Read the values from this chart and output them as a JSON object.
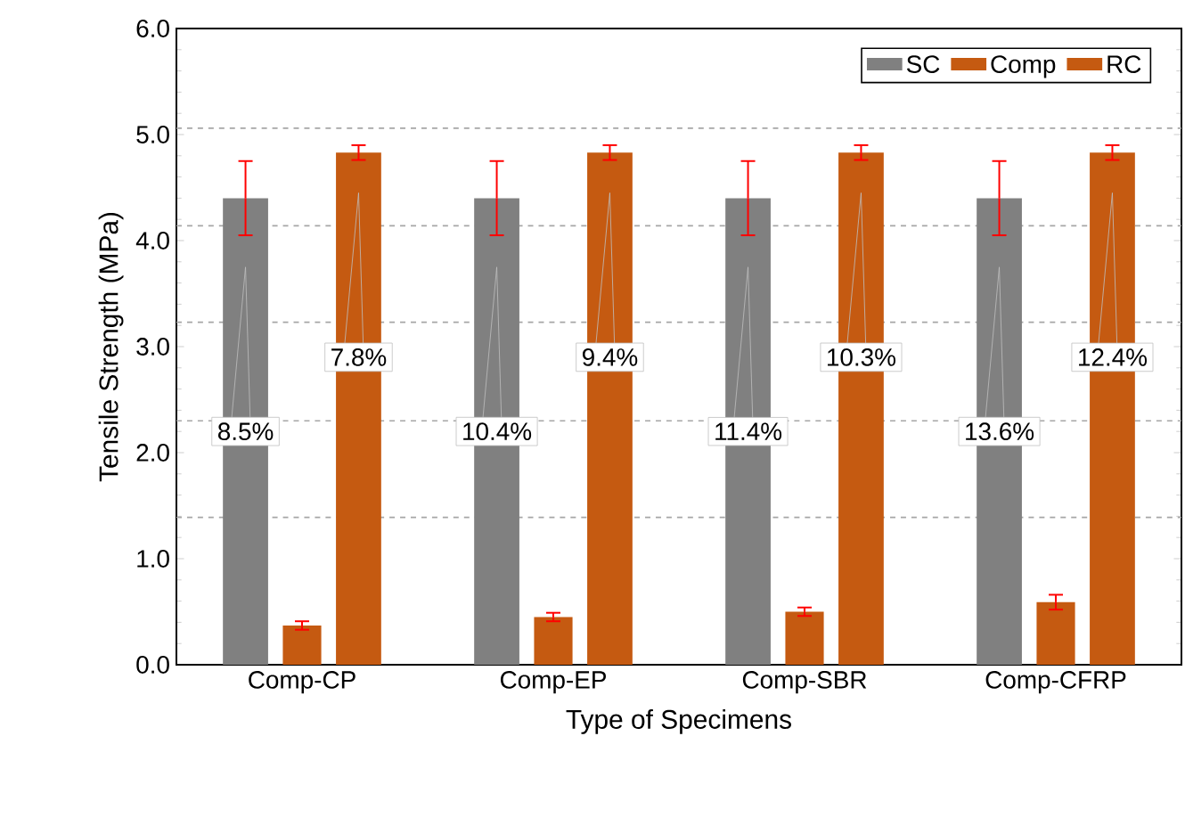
{
  "chart_data": {
    "type": "bar",
    "xlabel": "Type of Specimens",
    "ylabel": "Tensile Strength (MPa)",
    "categories": [
      "Comp-CP",
      "Comp-EP",
      "Comp-SBR",
      "Comp-CFRP"
    ],
    "series": [
      {
        "name": "SC",
        "color": "#808080",
        "values": [
          4.4,
          4.4,
          4.4,
          4.4
        ],
        "errors": [
          0.35,
          0.35,
          0.35,
          0.35
        ]
      },
      {
        "name": "Comp",
        "color": "#c55a11",
        "values": [
          0.37,
          0.45,
          0.5,
          0.59
        ],
        "errors": [
          0.04,
          0.04,
          0.04,
          0.07
        ]
      },
      {
        "name": "RC",
        "color": "#c55a11",
        "values": [
          4.83,
          4.83,
          4.83,
          4.83
        ],
        "errors": [
          0.07,
          0.07,
          0.07,
          0.07
        ]
      }
    ],
    "ylim": [
      0,
      6
    ],
    "yticks": [
      {
        "value": 0,
        "label": "0.0"
      },
      {
        "value": 1,
        "label": "1.0"
      },
      {
        "value": 2,
        "label": "2.0"
      },
      {
        "value": 3,
        "label": "3.0"
      },
      {
        "value": 4,
        "label": "4.0"
      },
      {
        "value": 5,
        "label": "5.0"
      },
      {
        "value": 6,
        "label": "6.0"
      }
    ],
    "ref_lines": [
      {
        "axis": "y",
        "value": 1.39,
        "color": "#a6a6a6",
        "line_style": "dashed"
      },
      {
        "axis": "y",
        "value": 2.3,
        "color": "#a6a6a6",
        "line_style": "dashed"
      },
      {
        "axis": "y",
        "value": 3.23,
        "color": "#a6a6a6",
        "line_style": "dashed"
      },
      {
        "axis": "y",
        "value": 4.14,
        "color": "#a6a6a6",
        "line_style": "dashed"
      },
      {
        "axis": "y",
        "value": 5.06,
        "color": "#a6a6a6",
        "line_style": "dashed"
      }
    ],
    "annotations": [
      "8.5%",
      "7.8%",
      "10.4%",
      "9.4%",
      "11.4%",
      "10.3%",
      "13.6%",
      "12.4%"
    ],
    "legend": "top right",
    "grid": false
  }
}
